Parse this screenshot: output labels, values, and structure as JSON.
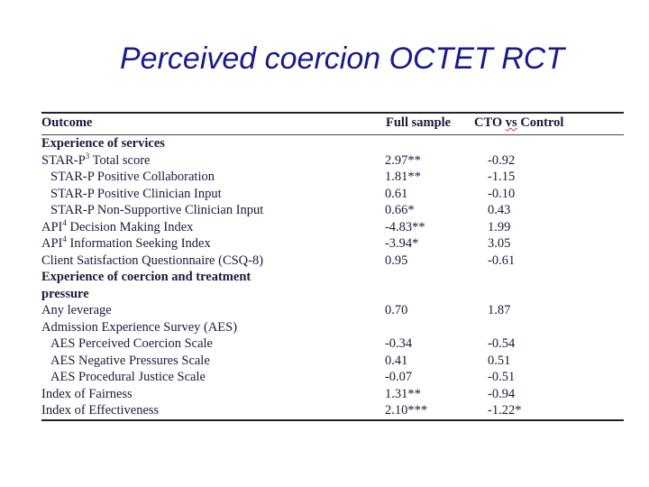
{
  "slide": {
    "title": "Perceived coercion OCTET RCT"
  },
  "table": {
    "headers": {
      "outcome": "Outcome",
      "full_sample": "Full sample",
      "cto_vs_control_pre": "CTO ",
      "cto_vs_control_vs": "vs",
      "cto_vs_control_post": " Control"
    },
    "rows": [
      {
        "label": "Experience of services",
        "full": "",
        "cto": ""
      },
      {
        "label": "STAR-P",
        "sup": "3",
        "label_rest": " Total score",
        "full": "2.97**",
        "cto": "-0.92"
      },
      {
        "label": "STAR-P Positive Collaboration",
        "full": "1.81**",
        "cto": "-1.15"
      },
      {
        "label": "STAR-P Positive Clinician Input",
        "full": "0.61",
        "cto": "-0.10"
      },
      {
        "label": "STAR-P Non-Supportive Clinician Input",
        "full": "0.66*",
        "cto": "0.43"
      },
      {
        "label": "API",
        "sup": "4",
        "label_rest": " Decision Making Index",
        "full": "-4.83**",
        "cto": "1.99"
      },
      {
        "label": "API",
        "sup": "4",
        "label_rest": " Information Seeking Index",
        "full": "-3.94*",
        "cto": "3.05"
      },
      {
        "label": "Client Satisfaction Questionnaire (CSQ-8)",
        "full": "0.95",
        "cto": "-0.61"
      },
      {
        "label": "Experience of coercion and treatment",
        "full": "",
        "cto": ""
      },
      {
        "label": "pressure",
        "full": "",
        "cto": ""
      },
      {
        "label": "Any leverage",
        "full": "0.70",
        "cto": "1.87"
      },
      {
        "label": "Admission Experience Survey (AES)",
        "full": "",
        "cto": ""
      },
      {
        "label": "AES Perceived Coercion Scale",
        "full": "-0.34",
        "cto": "-0.54"
      },
      {
        "label": "AES Negative Pressures Scale",
        "full": "0.41",
        "cto": "0.51"
      },
      {
        "label": "AES Procedural Justice Scale",
        "full": "-0.07",
        "cto": "-0.51"
      },
      {
        "label": "Index of Fairness",
        "full": "1.31**",
        "cto": "-0.94"
      },
      {
        "label": "Index of Effectiveness",
        "full": "2.10***",
        "cto": "-1.22*"
      }
    ]
  }
}
